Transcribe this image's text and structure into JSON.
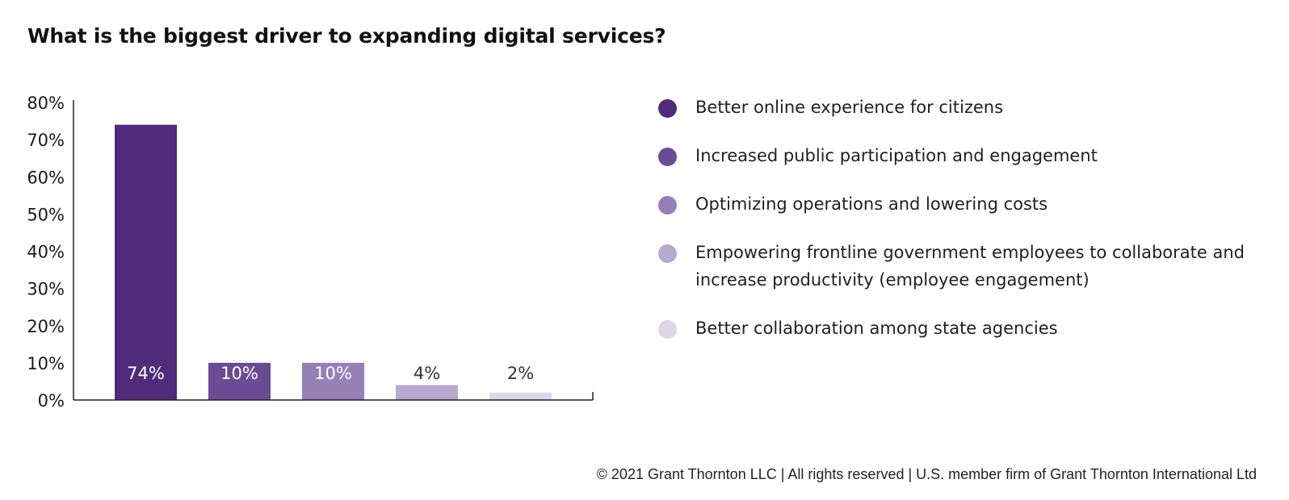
{
  "chart_data": {
    "type": "bar",
    "title": "What is the biggest driver to expanding digital services?",
    "categories": [
      "Better online experience for citizens",
      "Increased public participation and engagement",
      "Optimizing operations and lowering costs",
      "Empowering frontline government employees to collaborate and increase productivity (employee engagement)",
      "Better collaboration among state agencies"
    ],
    "values": [
      74,
      10,
      10,
      4,
      2
    ],
    "data_labels": [
      "74%",
      "10%",
      "10%",
      "4%",
      "2%"
    ],
    "colors": [
      "#4f2b7a",
      "#6a4b94",
      "#9680b6",
      "#b7aacf",
      "#dcd6e8"
    ],
    "label_colors": [
      "#ffffff",
      "#ffffff",
      "#ffffff",
      "#333333",
      "#333333"
    ],
    "ylim": [
      0,
      80
    ],
    "yticks": [
      "0%",
      "10%",
      "20%",
      "30%",
      "40%",
      "50%",
      "60%",
      "70%",
      "80%"
    ],
    "xlabel": "",
    "ylabel": "",
    "grid": false,
    "legend_position": "right"
  },
  "legend": {
    "items": [
      "Better online experience for citizens",
      "Increased public participation and engagement",
      "Optimizing operations and lowering costs",
      "Empowering frontline government employees to collaborate and increase productivity (employee engagement)",
      "Better collaboration among state agencies"
    ]
  },
  "footer": {
    "text": "© 2021 Grant Thornton LLC  |  All rights reserved  |  U.S. member firm of Grant Thornton International Ltd"
  }
}
